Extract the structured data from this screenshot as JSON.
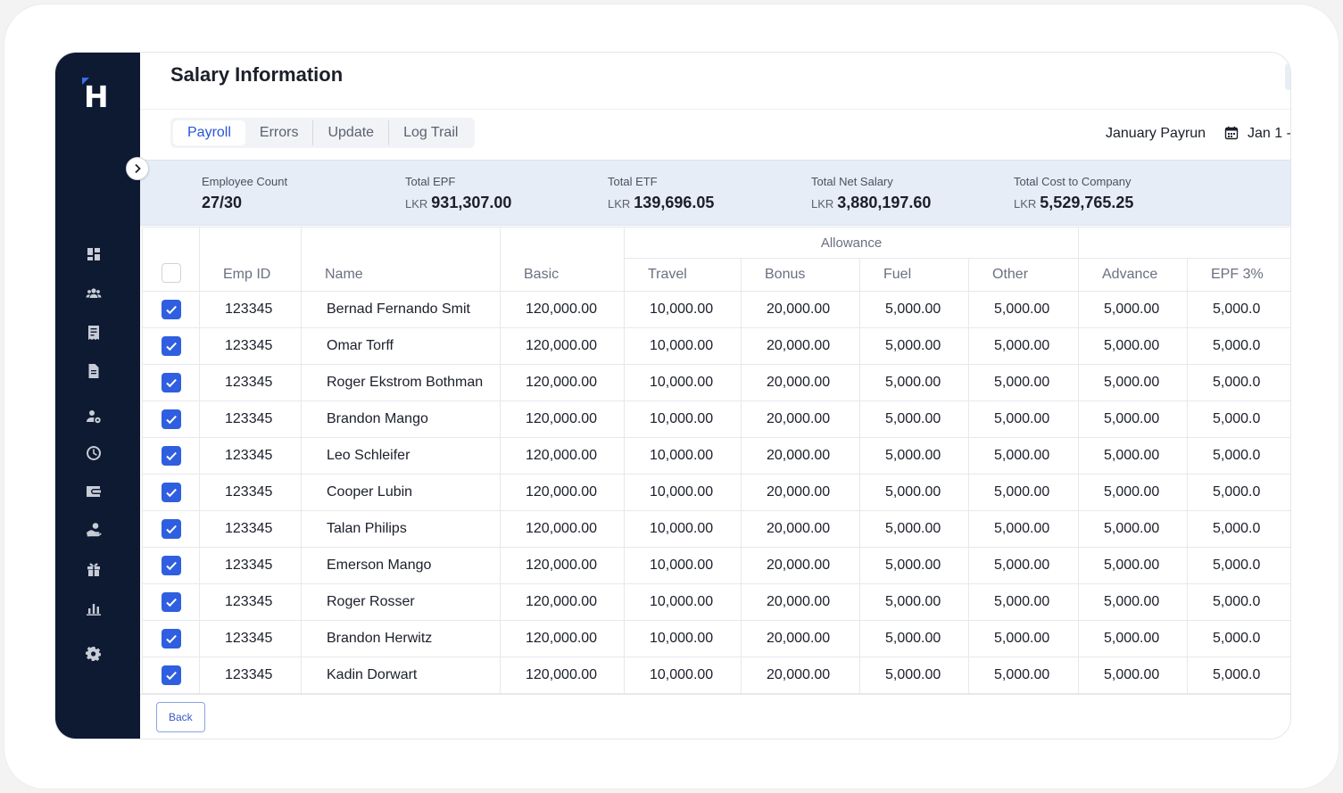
{
  "page": {
    "title": "Salary Information"
  },
  "tabs": [
    {
      "label": "Payroll",
      "active": true
    },
    {
      "label": "Errors",
      "active": false
    },
    {
      "label": "Update",
      "active": false
    },
    {
      "label": "Log Trail",
      "active": false
    }
  ],
  "payrun": {
    "label": "January Payrun",
    "date_range": "Jan 1 -"
  },
  "summary": {
    "employee_count": {
      "label": "Employee Count",
      "value": "27/30"
    },
    "total_epf": {
      "label": "Total EPF",
      "currency": "LKR",
      "value": "931,307.00"
    },
    "total_etf": {
      "label": "Total ETF",
      "currency": "LKR",
      "value": "139,696.05"
    },
    "total_net_salary": {
      "label": "Total Net Salary",
      "currency": "LKR",
      "value": "3,880,197.60"
    },
    "total_cost": {
      "label": "Total Cost to Company",
      "currency": "LKR",
      "value": "5,529,765.25"
    }
  },
  "table": {
    "headers": {
      "emp_id": "Emp ID",
      "name": "Name",
      "basic": "Basic",
      "allowance_group": "Allowance",
      "travel": "Travel",
      "bonus": "Bonus",
      "fuel": "Fuel",
      "other": "Other",
      "advance": "Advance",
      "epf": "EPF 3%"
    },
    "rows": [
      {
        "emp_id": "123345",
        "name": "Bernad Fernando Smit",
        "basic": "120,000.00",
        "travel": "10,000.00",
        "bonus": "20,000.00",
        "fuel": "5,000.00",
        "other": "5,000.00",
        "advance": "5,000.00",
        "epf": "5,000.0"
      },
      {
        "emp_id": "123345",
        "name": "Omar Torff",
        "basic": "120,000.00",
        "travel": "10,000.00",
        "bonus": "20,000.00",
        "fuel": "5,000.00",
        "other": "5,000.00",
        "advance": "5,000.00",
        "epf": "5,000.0"
      },
      {
        "emp_id": "123345",
        "name": "Roger Ekstrom Bothman",
        "basic": "120,000.00",
        "travel": "10,000.00",
        "bonus": "20,000.00",
        "fuel": "5,000.00",
        "other": "5,000.00",
        "advance": "5,000.00",
        "epf": "5,000.0"
      },
      {
        "emp_id": "123345",
        "name": "Brandon Mango",
        "basic": "120,000.00",
        "travel": "10,000.00",
        "bonus": "20,000.00",
        "fuel": "5,000.00",
        "other": "5,000.00",
        "advance": "5,000.00",
        "epf": "5,000.0"
      },
      {
        "emp_id": "123345",
        "name": "Leo Schleifer",
        "basic": "120,000.00",
        "travel": "10,000.00",
        "bonus": "20,000.00",
        "fuel": "5,000.00",
        "other": "5,000.00",
        "advance": "5,000.00",
        "epf": "5,000.0"
      },
      {
        "emp_id": "123345",
        "name": "Cooper Lubin",
        "basic": "120,000.00",
        "travel": "10,000.00",
        "bonus": "20,000.00",
        "fuel": "5,000.00",
        "other": "5,000.00",
        "advance": "5,000.00",
        "epf": "5,000.0"
      },
      {
        "emp_id": "123345",
        "name": "Talan Philips",
        "basic": "120,000.00",
        "travel": "10,000.00",
        "bonus": "20,000.00",
        "fuel": "5,000.00",
        "other": "5,000.00",
        "advance": "5,000.00",
        "epf": "5,000.0"
      },
      {
        "emp_id": "123345",
        "name": "Emerson Mango",
        "basic": "120,000.00",
        "travel": "10,000.00",
        "bonus": "20,000.00",
        "fuel": "5,000.00",
        "other": "5,000.00",
        "advance": "5,000.00",
        "epf": "5,000.0"
      },
      {
        "emp_id": "123345",
        "name": "Roger Rosser",
        "basic": "120,000.00",
        "travel": "10,000.00",
        "bonus": "20,000.00",
        "fuel": "5,000.00",
        "other": "5,000.00",
        "advance": "5,000.00",
        "epf": "5,000.0"
      },
      {
        "emp_id": "123345",
        "name": "Brandon Herwitz",
        "basic": "120,000.00",
        "travel": "10,000.00",
        "bonus": "20,000.00",
        "fuel": "5,000.00",
        "other": "5,000.00",
        "advance": "5,000.00",
        "epf": "5,000.0"
      },
      {
        "emp_id": "123345",
        "name": "Kadin Dorwart",
        "basic": "120,000.00",
        "travel": "10,000.00",
        "bonus": "20,000.00",
        "fuel": "5,000.00",
        "other": "5,000.00",
        "advance": "5,000.00",
        "epf": "5,000.0"
      }
    ]
  },
  "footer": {
    "back_label": "Back"
  },
  "sidebar": {
    "logo_letter": "H",
    "icons": [
      "dashboard-icon",
      "team-icon",
      "payroll-icon",
      "document-icon",
      "user-settings-icon",
      "clock-icon",
      "wallet-icon",
      "loan-icon",
      "gift-icon",
      "reports-icon",
      "settings-icon"
    ]
  },
  "colors": {
    "sidebar": "#0d1a32",
    "accent": "#2f5fe0",
    "summary_bg": "#e7edf7"
  }
}
